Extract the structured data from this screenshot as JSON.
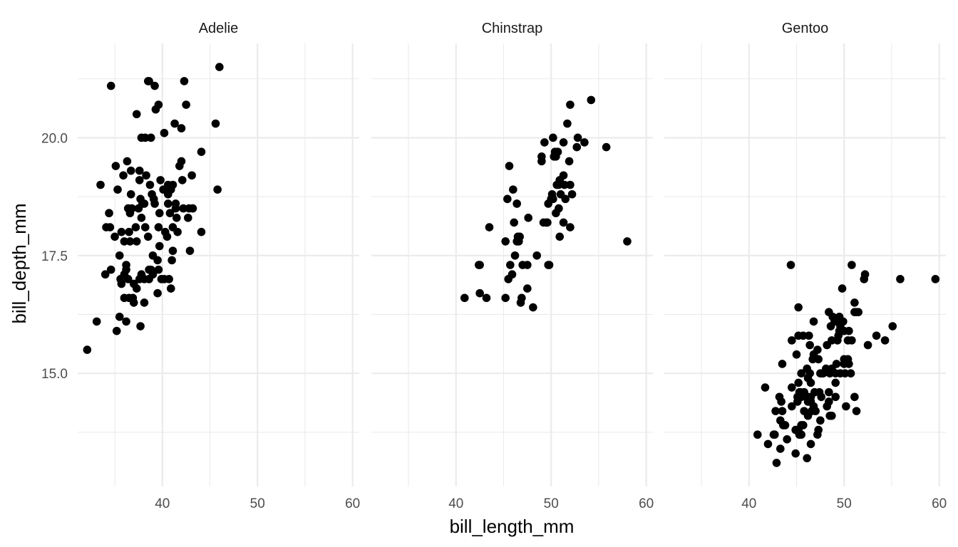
{
  "chart_data": {
    "type": "scatter",
    "xlabel": "bill_length_mm",
    "ylabel": "bill_depth_mm",
    "xlim": [
      31.1,
      60.7
    ],
    "ylim": [
      12.6,
      22.0
    ],
    "x_ticks": [
      40,
      50,
      60
    ],
    "x_tick_labels": [
      "40",
      "50",
      "60"
    ],
    "x_minor_ticks": [
      35,
      45,
      55
    ],
    "y_ticks": [
      15.0,
      17.5,
      20.0
    ],
    "y_tick_labels": [
      "15.0",
      "17.5",
      "20.0"
    ],
    "y_minor_ticks": [
      13.75,
      16.25,
      18.75,
      21.25
    ],
    "grid": true,
    "point_color": "#000000",
    "facets": [
      {
        "name": "Adelie",
        "points": [
          [
            32.1,
            15.5
          ],
          [
            33.1,
            16.1
          ],
          [
            33.5,
            19.0
          ],
          [
            34.0,
            17.1
          ],
          [
            34.1,
            18.1
          ],
          [
            34.4,
            18.4
          ],
          [
            34.5,
            18.1
          ],
          [
            34.6,
            21.1
          ],
          [
            34.6,
            17.2
          ],
          [
            35.0,
            17.9
          ],
          [
            35.1,
            19.4
          ],
          [
            35.2,
            15.9
          ],
          [
            35.3,
            18.9
          ],
          [
            35.5,
            16.2
          ],
          [
            35.5,
            17.5
          ],
          [
            35.6,
            17.0
          ],
          [
            35.7,
            16.9
          ],
          [
            35.7,
            18.0
          ],
          [
            35.9,
            19.2
          ],
          [
            36.0,
            16.6
          ],
          [
            36.0,
            17.1
          ],
          [
            36.0,
            17.8
          ],
          [
            36.2,
            16.1
          ],
          [
            36.2,
            17.2
          ],
          [
            36.2,
            17.3
          ],
          [
            36.3,
            19.5
          ],
          [
            36.4,
            17.0
          ],
          [
            36.5,
            16.6
          ],
          [
            36.5,
            18.0
          ],
          [
            36.6,
            17.8
          ],
          [
            36.6,
            18.4
          ],
          [
            36.7,
            18.8
          ],
          [
            36.7,
            19.3
          ],
          [
            36.8,
            18.5
          ],
          [
            36.9,
            16.6
          ],
          [
            37.0,
            16.5
          ],
          [
            37.0,
            16.9
          ],
          [
            37.2,
            18.1
          ],
          [
            37.3,
            16.8
          ],
          [
            37.3,
            17.8
          ],
          [
            37.3,
            20.5
          ],
          [
            37.5,
            18.5
          ],
          [
            37.6,
            17.0
          ],
          [
            37.6,
            19.1
          ],
          [
            37.7,
            16.0
          ],
          [
            37.7,
            18.7
          ],
          [
            37.8,
            17.1
          ],
          [
            37.8,
            18.3
          ],
          [
            37.8,
            20.0
          ],
          [
            37.9,
            18.6
          ],
          [
            38.1,
            16.5
          ],
          [
            38.1,
            17.0
          ],
          [
            38.1,
            18.6
          ],
          [
            38.2,
            20.0
          ],
          [
            38.3,
            19.2
          ],
          [
            38.5,
            17.9
          ],
          [
            38.5,
            21.2
          ],
          [
            38.6,
            17.0
          ],
          [
            38.6,
            17.2
          ],
          [
            38.6,
            21.2
          ],
          [
            38.7,
            19.0
          ],
          [
            38.8,
            17.2
          ],
          [
            38.8,
            20.0
          ],
          [
            39.0,
            17.1
          ],
          [
            39.0,
            17.5
          ],
          [
            39.1,
            18.7
          ],
          [
            39.2,
            18.6
          ],
          [
            39.2,
            21.1
          ],
          [
            39.3,
            20.6
          ],
          [
            39.5,
            16.7
          ],
          [
            39.5,
            17.4
          ],
          [
            39.6,
            17.2
          ],
          [
            39.6,
            18.1
          ],
          [
            39.6,
            20.7
          ],
          [
            39.7,
            17.7
          ],
          [
            39.8,
            19.1
          ],
          [
            39.9,
            17.0
          ],
          [
            40.1,
            18.9
          ],
          [
            40.2,
            17.0
          ],
          [
            40.2,
            20.1
          ],
          [
            40.3,
            18.0
          ],
          [
            40.5,
            17.9
          ],
          [
            40.6,
            18.6
          ],
          [
            40.6,
            19.0
          ],
          [
            40.7,
            17.0
          ],
          [
            40.8,
            18.4
          ],
          [
            40.9,
            16.8
          ],
          [
            40.9,
            18.9
          ],
          [
            41.0,
            17.4
          ],
          [
            41.1,
            17.6
          ],
          [
            41.1,
            18.1
          ],
          [
            41.1,
            19.0
          ],
          [
            41.3,
            20.3
          ],
          [
            41.4,
            18.5
          ],
          [
            41.5,
            18.3
          ],
          [
            41.6,
            18.0
          ],
          [
            41.8,
            19.4
          ],
          [
            42.0,
            20.2
          ],
          [
            42.1,
            19.1
          ],
          [
            42.2,
            18.5
          ],
          [
            42.3,
            21.2
          ],
          [
            42.5,
            20.7
          ],
          [
            42.7,
            18.3
          ],
          [
            42.8,
            18.5
          ],
          [
            42.9,
            17.6
          ],
          [
            43.1,
            19.2
          ],
          [
            43.2,
            18.5
          ],
          [
            44.1,
            18.0
          ],
          [
            44.1,
            19.7
          ],
          [
            45.6,
            20.3
          ],
          [
            45.8,
            18.9
          ],
          [
            46.0,
            21.5
          ],
          [
            38.9,
            18.8
          ],
          [
            40.6,
            18.8
          ],
          [
            41.4,
            18.6
          ],
          [
            38.2,
            18.1
          ],
          [
            36.4,
            18.5
          ],
          [
            42.0,
            19.5
          ],
          [
            37.6,
            19.3
          ],
          [
            39.7,
            18.4
          ]
        ]
      },
      {
        "name": "Chinstrap",
        "points": [
          [
            40.9,
            16.6
          ],
          [
            42.4,
            17.3
          ],
          [
            42.5,
            16.7
          ],
          [
            42.5,
            17.3
          ],
          [
            43.2,
            16.6
          ],
          [
            43.5,
            18.1
          ],
          [
            45.2,
            17.8
          ],
          [
            45.2,
            16.6
          ],
          [
            45.4,
            18.7
          ],
          [
            45.5,
            17.0
          ],
          [
            45.6,
            19.4
          ],
          [
            45.7,
            17.3
          ],
          [
            45.9,
            17.1
          ],
          [
            46.0,
            18.9
          ],
          [
            46.1,
            18.2
          ],
          [
            46.2,
            17.5
          ],
          [
            46.4,
            18.6
          ],
          [
            46.5,
            17.9
          ],
          [
            46.6,
            17.8
          ],
          [
            46.7,
            17.9
          ],
          [
            46.8,
            16.5
          ],
          [
            46.9,
            16.6
          ],
          [
            47.0,
            17.3
          ],
          [
            47.5,
            16.8
          ],
          [
            47.6,
            18.3
          ],
          [
            48.1,
            16.4
          ],
          [
            48.5,
            17.5
          ],
          [
            49.0,
            19.5
          ],
          [
            49.0,
            19.6
          ],
          [
            49.2,
            18.2
          ],
          [
            49.3,
            19.9
          ],
          [
            49.5,
            18.2
          ],
          [
            49.6,
            18.2
          ],
          [
            49.7,
            17.3
          ],
          [
            49.7,
            18.6
          ],
          [
            49.8,
            17.3
          ],
          [
            50.0,
            18.7
          ],
          [
            50.1,
            18.8
          ],
          [
            50.2,
            18.7
          ],
          [
            50.2,
            20.0
          ],
          [
            50.3,
            19.6
          ],
          [
            50.4,
            19.7
          ],
          [
            50.5,
            18.4
          ],
          [
            50.6,
            19.0
          ],
          [
            50.7,
            19.7
          ],
          [
            50.8,
            18.5
          ],
          [
            50.8,
            19.0
          ],
          [
            50.9,
            17.9
          ],
          [
            50.9,
            19.1
          ],
          [
            51.0,
            18.8
          ],
          [
            51.3,
            18.2
          ],
          [
            51.3,
            19.2
          ],
          [
            51.3,
            19.9
          ],
          [
            51.4,
            19.0
          ],
          [
            51.5,
            18.7
          ],
          [
            51.7,
            20.3
          ],
          [
            51.9,
            19.5
          ],
          [
            52.0,
            18.1
          ],
          [
            52.0,
            19.0
          ],
          [
            52.0,
            20.7
          ],
          [
            52.2,
            18.8
          ],
          [
            52.7,
            19.8
          ],
          [
            52.8,
            20.0
          ],
          [
            53.5,
            19.9
          ],
          [
            54.2,
            20.8
          ],
          [
            55.8,
            19.8
          ],
          [
            58.0,
            17.8
          ],
          [
            50.5,
            19.6
          ],
          [
            46.4,
            17.8
          ],
          [
            47.5,
            17.3
          ]
        ]
      },
      {
        "name": "Gentoo",
        "points": [
          [
            40.9,
            13.7
          ],
          [
            41.7,
            14.7
          ],
          [
            42.0,
            13.5
          ],
          [
            42.6,
            13.7
          ],
          [
            42.7,
            13.7
          ],
          [
            42.8,
            14.2
          ],
          [
            42.9,
            13.1
          ],
          [
            43.2,
            14.5
          ],
          [
            43.3,
            13.4
          ],
          [
            43.3,
            14.0
          ],
          [
            43.4,
            14.4
          ],
          [
            43.5,
            14.2
          ],
          [
            43.5,
            15.2
          ],
          [
            43.6,
            13.9
          ],
          [
            43.8,
            13.9
          ],
          [
            44.0,
            13.6
          ],
          [
            44.4,
            17.3
          ],
          [
            44.5,
            14.3
          ],
          [
            44.5,
            14.7
          ],
          [
            44.5,
            15.7
          ],
          [
            44.9,
            13.3
          ],
          [
            44.9,
            13.8
          ],
          [
            45.0,
            15.4
          ],
          [
            45.1,
            14.4
          ],
          [
            45.1,
            14.5
          ],
          [
            45.2,
            13.8
          ],
          [
            45.2,
            14.8
          ],
          [
            45.2,
            15.8
          ],
          [
            45.2,
            16.4
          ],
          [
            45.3,
            13.7
          ],
          [
            45.4,
            14.6
          ],
          [
            45.5,
            13.7
          ],
          [
            45.5,
            13.9
          ],
          [
            45.5,
            14.5
          ],
          [
            45.5,
            15.0
          ],
          [
            45.7,
            13.9
          ],
          [
            45.7,
            15.8
          ],
          [
            45.8,
            14.2
          ],
          [
            45.8,
            14.6
          ],
          [
            46.1,
            13.2
          ],
          [
            46.1,
            15.1
          ],
          [
            46.2,
            14.1
          ],
          [
            46.2,
            14.4
          ],
          [
            46.2,
            14.5
          ],
          [
            46.2,
            14.9
          ],
          [
            46.3,
            15.8
          ],
          [
            46.4,
            14.4
          ],
          [
            46.4,
            15.0
          ],
          [
            46.4,
            15.6
          ],
          [
            46.5,
            13.5
          ],
          [
            46.5,
            14.4
          ],
          [
            46.5,
            14.5
          ],
          [
            46.5,
            14.8
          ],
          [
            46.6,
            14.2
          ],
          [
            46.7,
            15.3
          ],
          [
            46.8,
            14.3
          ],
          [
            46.8,
            15.4
          ],
          [
            46.8,
            16.1
          ],
          [
            46.9,
            14.6
          ],
          [
            47.0,
            14.2
          ],
          [
            47.2,
            13.7
          ],
          [
            47.2,
            15.5
          ],
          [
            47.3,
            13.8
          ],
          [
            47.4,
            14.6
          ],
          [
            47.5,
            14.0
          ],
          [
            47.5,
            15.0
          ],
          [
            47.6,
            14.5
          ],
          [
            47.7,
            15.0
          ],
          [
            47.8,
            15.0
          ],
          [
            48.1,
            15.1
          ],
          [
            48.2,
            14.3
          ],
          [
            48.2,
            15.6
          ],
          [
            48.4,
            14.4
          ],
          [
            48.4,
            14.6
          ],
          [
            48.4,
            16.3
          ],
          [
            48.5,
            14.1
          ],
          [
            48.5,
            15.0
          ],
          [
            48.6,
            16.0
          ],
          [
            48.7,
            14.1
          ],
          [
            48.7,
            15.1
          ],
          [
            48.7,
            15.7
          ],
          [
            48.8,
            16.2
          ],
          [
            49.0,
            16.1
          ],
          [
            49.1,
            14.5
          ],
          [
            49.1,
            14.8
          ],
          [
            49.1,
            15.0
          ],
          [
            49.2,
            15.2
          ],
          [
            49.3,
            15.7
          ],
          [
            49.4,
            15.8
          ],
          [
            49.5,
            15.9
          ],
          [
            49.5,
            16.1
          ],
          [
            49.6,
            15.0
          ],
          [
            49.6,
            16.0
          ],
          [
            49.8,
            15.9
          ],
          [
            49.8,
            16.8
          ],
          [
            49.9,
            16.1
          ],
          [
            50.0,
            15.2
          ],
          [
            50.0,
            15.3
          ],
          [
            50.0,
            15.9
          ],
          [
            50.1,
            15.0
          ],
          [
            50.2,
            14.3
          ],
          [
            50.4,
            15.3
          ],
          [
            50.4,
            15.7
          ],
          [
            50.5,
            15.2
          ],
          [
            50.5,
            15.9
          ],
          [
            50.7,
            15.0
          ],
          [
            50.8,
            15.7
          ],
          [
            50.8,
            17.3
          ],
          [
            51.1,
            14.5
          ],
          [
            51.1,
            16.3
          ],
          [
            51.1,
            16.5
          ],
          [
            51.3,
            14.2
          ],
          [
            51.3,
            16.3
          ],
          [
            51.5,
            16.3
          ],
          [
            52.1,
            17.0
          ],
          [
            52.2,
            17.1
          ],
          [
            52.5,
            15.6
          ],
          [
            53.4,
            15.8
          ],
          [
            54.3,
            15.7
          ],
          [
            55.1,
            16.0
          ],
          [
            55.9,
            17.0
          ],
          [
            59.6,
            17.0
          ],
          [
            49.5,
            16.2
          ],
          [
            47.3,
            15.3
          ],
          [
            45.3,
            14.6
          ]
        ]
      }
    ]
  }
}
